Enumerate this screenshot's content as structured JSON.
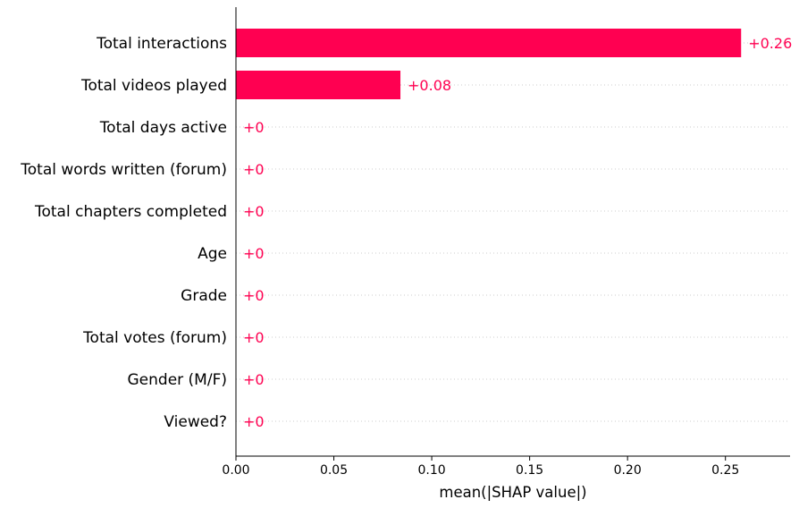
{
  "chart_data": {
    "type": "bar",
    "orientation": "horizontal",
    "categories": [
      "Total interactions",
      "Total videos played",
      "Total days active",
      "Total words written (forum)",
      "Total chapters completed",
      "Age",
      "Grade",
      "Total votes (forum)",
      "Gender (M/F)",
      "Viewed?"
    ],
    "values": [
      0.258,
      0.084,
      0,
      0,
      0,
      0,
      0,
      0,
      0,
      0
    ],
    "value_labels": [
      "+0.26",
      "+0.08",
      "+0",
      "+0",
      "+0",
      "+0",
      "+0",
      "+0",
      "+0",
      "+0"
    ],
    "xlabel": "mean(|SHAP value|)",
    "xlim": [
      0,
      0.283
    ],
    "xticks": [
      0.0,
      0.05,
      0.1,
      0.15,
      0.2,
      0.25
    ],
    "xtick_labels": [
      "0.00",
      "0.05",
      "0.10",
      "0.15",
      "0.20",
      "0.25"
    ],
    "grid": "dotted horizontal lines per row",
    "bar_color": "#ff0051",
    "grid_color": "#cccccc"
  }
}
